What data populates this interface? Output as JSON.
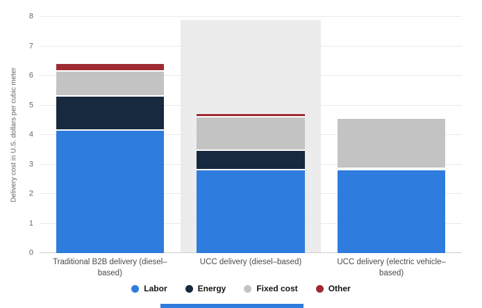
{
  "chart_data": {
    "type": "bar",
    "stacked": true,
    "title": "",
    "ylabel": "Delivery cost in U.S. dollars per cubic meter",
    "xlabel": "",
    "ylim": [
      0,
      8
    ],
    "yticks": [
      0,
      1,
      2,
      3,
      4,
      5,
      6,
      7,
      8
    ],
    "grid": true,
    "legend_position": "bottom",
    "categories": [
      "Traditional B2B delivery (diesel–based)",
      "UCC delivery (diesel–based)",
      "UCC delivery (electric vehicle–based)"
    ],
    "series": [
      {
        "name": "Labor",
        "color": "#2e7cdd",
        "values": [
          4.15,
          2.8,
          2.8
        ]
      },
      {
        "name": "Energy",
        "color": "#16293e",
        "values": [
          1.15,
          0.65,
          0.05
        ]
      },
      {
        "name": "Fixed cost",
        "color": "#c3c3c3",
        "values": [
          0.85,
          1.15,
          1.7
        ]
      },
      {
        "name": "Other",
        "color": "#9e2b33",
        "values": [
          0.25,
          0.1,
          0.05
        ]
      }
    ],
    "totals": [
      6.4,
      4.7,
      4.6
    ],
    "highlight_band": {
      "category_index": 1,
      "color": "#ececec"
    }
  },
  "footer": {
    "strip_color": "#2e7cdd"
  }
}
